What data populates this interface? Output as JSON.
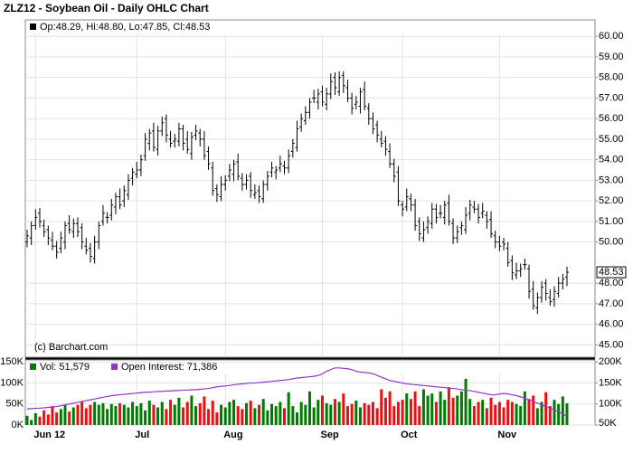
{
  "chart_data": {
    "type": "ohlc",
    "title": "ZLZ12 - Soybean Oil - Daily OHLC Chart",
    "legend_text": "Op:48.29, Hi:48.80, Lo:47.85, Cl:48.53",
    "watermark": "(c) Barchart.com",
    "bar_color": "#000000",
    "grid": true,
    "categories": [
      null,
      null,
      "Jun 12",
      null,
      null,
      null,
      null,
      null,
      null,
      null,
      null,
      null,
      null,
      null,
      null,
      null,
      null,
      null,
      null,
      null,
      null,
      null,
      null,
      null,
      null,
      null,
      "Jul",
      null,
      null,
      null,
      null,
      null,
      null,
      null,
      null,
      null,
      null,
      null,
      null,
      null,
      null,
      null,
      null,
      null,
      null,
      null,
      null,
      "Aug",
      null,
      null,
      null,
      null,
      null,
      null,
      null,
      null,
      null,
      null,
      null,
      null,
      null,
      null,
      null,
      null,
      null,
      null,
      null,
      null,
      null,
      null,
      "Sep",
      null,
      null,
      null,
      null,
      null,
      null,
      null,
      null,
      null,
      null,
      null,
      null,
      null,
      null,
      null,
      null,
      null,
      null,
      "Oct",
      null,
      null,
      null,
      null,
      null,
      null,
      null,
      null,
      null,
      null,
      null,
      null,
      null,
      null,
      null,
      null,
      null,
      null,
      null,
      null,
      null,
      null,
      "Nov",
      null,
      null,
      null,
      null,
      null,
      null,
      null,
      null,
      null,
      null,
      null,
      null,
      null,
      null,
      null,
      null
    ],
    "open": [
      50.0,
      50.2,
      50.8,
      51.4,
      50.8,
      50.6,
      50.1,
      49.8,
      49.7,
      50.0,
      50.9,
      50.5,
      50.9,
      50.7,
      49.8,
      49.7,
      49.2,
      50.0,
      51.0,
      51.2,
      51.3,
      51.7,
      52.2,
      52.0,
      52.3,
      53.1,
      53.3,
      53.5,
      54.2,
      54.8,
      55.4,
      54.5,
      55.4,
      56.0,
      55.0,
      54.9,
      54.9,
      55.5,
      55.0,
      54.3,
      55.2,
      55.3,
      55.0,
      54.4,
      53.6,
      52.6,
      52.2,
      52.8,
      53.2,
      53.3,
      53.9,
      53.1,
      52.8,
      53.2,
      52.3,
      52.5,
      52.1,
      52.8,
      53.4,
      53.4,
      53.6,
      53.7,
      53.6,
      54.4,
      54.6,
      55.6,
      55.9,
      56.3,
      57.0,
      56.8,
      57.3,
      56.7,
      57.2,
      58.0,
      57.3,
      58.1,
      57.5,
      57.0,
      56.7,
      56.6,
      57.4,
      56.5,
      56.0,
      55.7,
      55.0,
      54.9,
      54.4,
      53.8,
      53.4,
      51.8,
      51.7,
      52.1,
      51.8,
      51.0,
      50.2,
      50.7,
      50.9,
      51.6,
      51.4,
      51.2,
      51.9,
      50.9,
      50.2,
      50.7,
      50.6,
      51.4,
      51.7,
      51.6,
      51.4,
      51.3,
      51.1,
      50.3,
      50.0,
      50.0,
      49.7,
      49.1,
      48.4,
      48.6,
      48.9,
      48.7,
      47.7,
      46.8,
      47.3,
      48.0,
      47.3,
      47.2,
      47.5,
      48.0,
      48.29
    ],
    "high": [
      50.6,
      51.0,
      51.6,
      51.65,
      51.1,
      50.8,
      50.5,
      50.05,
      50.5,
      51.0,
      51.3,
      51.15,
      51.2,
      50.9,
      50.2,
      49.95,
      50.3,
      51.0,
      51.8,
      51.45,
      52.1,
      52.4,
      52.6,
      52.75,
      53.3,
      53.6,
      53.9,
      54.25,
      55.3,
      55.5,
      55.8,
      55.65,
      56.1,
      56.2,
      55.4,
      55.25,
      55.8,
      55.7,
      55.4,
      55.35,
      55.7,
      55.5,
      55.4,
      54.65,
      53.9,
      52.8,
      53.2,
      53.25,
      53.8,
      54.0,
      54.3,
      53.35,
      53.3,
      53.4,
      52.8,
      52.75,
      53.0,
      53.45,
      53.9,
      53.7,
      54.2,
      53.95,
      54.5,
      55.0,
      55.9,
      56.25,
      56.6,
      57.0,
      57.4,
      57.45,
      57.6,
      57.5,
      58.2,
      58.25,
      58.3,
      58.3,
      57.9,
      57.25,
      57.1,
      57.5,
      57.8,
      56.75,
      56.3,
      55.9,
      55.4,
      55.15,
      54.8,
      54.05,
      53.7,
      52.0,
      52.6,
      52.35,
      52.1,
      51.2,
      51.0,
      51.25,
      51.9,
      51.85,
      51.8,
      52.0,
      52.3,
      51.15,
      50.8,
      51.0,
      51.7,
      52.05,
      52.0,
      51.85,
      51.9,
      51.5,
      51.5,
      50.55,
      50.3,
      50.2,
      50.0,
      49.35,
      49.0,
      48.95,
      49.2,
      48.9,
      48.1,
      47.55,
      48.1,
      48.2,
      47.7,
      47.85,
      48.3,
      48.45,
      48.8
    ],
    "low": [
      49.75,
      49.85,
      50.6,
      50.7,
      50.25,
      49.85,
      49.6,
      49.2,
      49.45,
      49.65,
      50.4,
      50.2,
      50.25,
      49.65,
      49.4,
      49.0,
      48.95,
      49.65,
      50.8,
      50.9,
      51.05,
      51.35,
      51.6,
      51.7,
      52.05,
      52.75,
      53.1,
      53.2,
      53.95,
      54.45,
      54.4,
      54.2,
      55.15,
      54.85,
      54.6,
      54.6,
      54.65,
      54.45,
      54.3,
      54.0,
      54.95,
      54.65,
      54.0,
      53.5,
      52.25,
      51.95,
      52.0,
      52.5,
      52.95,
      52.95,
      53.0,
      52.5,
      52.55,
      52.15,
      52.1,
      51.9,
      51.9,
      52.5,
      53.15,
      53.05,
      53.4,
      53.3,
      53.35,
      54.1,
      54.4,
      55.35,
      55.7,
      56.0,
      56.75,
      56.45,
      56.6,
      56.4,
      56.95,
      57.15,
      57.1,
      57.25,
      56.8,
      56.2,
      56.45,
      56.25,
      56.4,
      55.7,
      55.25,
      54.85,
      54.6,
      54.2,
      53.6,
      52.9,
      51.75,
      51.25,
      51.5,
      51.5,
      50.55,
      50.05,
      50.0,
      50.4,
      50.65,
      50.9,
      51.15,
      50.85,
      50.8,
      49.9,
      49.95,
      50.35,
      50.4,
      51.05,
      51.4,
      50.9,
      51.15,
      50.65,
      50.2,
      49.7,
      49.55,
      49.6,
      48.8,
      48.15,
      48.2,
      48.3,
      48.65,
      47.25,
      46.7,
      46.5,
      47.05,
      47.15,
      46.9,
      46.85,
      47.3,
      47.7,
      47.85
    ],
    "close": [
      50.3,
      50.8,
      51.2,
      51.0,
      50.5,
      50.2,
      49.8,
      49.5,
      50.2,
      50.8,
      50.6,
      50.9,
      50.5,
      50.0,
      49.6,
      49.3,
      50.0,
      50.8,
      51.4,
      51.2,
      51.8,
      52.2,
      51.8,
      52.5,
      53.0,
      53.4,
      53.5,
      54.0,
      55.0,
      55.3,
      54.6,
      55.4,
      55.8,
      55.2,
      54.8,
      55.0,
      55.5,
      54.8,
      54.5,
      55.1,
      55.4,
      55.0,
      54.2,
      53.8,
      52.5,
      52.3,
      52.8,
      53.0,
      53.5,
      53.8,
      53.2,
      52.8,
      53.0,
      52.5,
      52.4,
      52.2,
      52.8,
      53.2,
      53.6,
      53.5,
      53.8,
      53.6,
      54.2,
      54.8,
      55.5,
      56.0,
      56.3,
      56.8,
      57.0,
      57.2,
      56.8,
      57.2,
      57.8,
      57.5,
      58.0,
      57.6,
      57.0,
      56.5,
      56.8,
      57.3,
      56.6,
      56.0,
      55.5,
      55.2,
      54.8,
      54.5,
      53.8,
      53.2,
      52.0,
      51.6,
      52.2,
      51.8,
      50.8,
      50.4,
      50.6,
      51.0,
      51.6,
      51.2,
      51.4,
      51.8,
      51.0,
      50.2,
      50.5,
      50.8,
      51.3,
      51.8,
      51.6,
      51.2,
      51.5,
      51.0,
      50.4,
      50.0,
      49.8,
      49.9,
      49.0,
      48.5,
      48.6,
      48.7,
      48.9,
      47.6,
      46.9,
      47.3,
      47.8,
      47.5,
      47.1,
      47.6,
      48.0,
      48.2,
      48.53
    ],
    "ylim": [
      44.4,
      60.8
    ],
    "yticks": [
      45,
      46,
      47,
      48,
      50,
      51,
      52,
      53,
      54,
      55,
      56,
      57,
      58,
      59,
      60
    ],
    "ytick_labels": [
      "45.00",
      "46.00",
      "47.00",
      "48.00",
      "50.00",
      "51.00",
      "52.00",
      "53.00",
      "54.00",
      "55.00",
      "56.00",
      "57.00",
      "58.00",
      "59.00",
      "60.00"
    ],
    "volume": {
      "name": "Vol: 51,579",
      "up_color": "#007a00",
      "down_color": "#e81010",
      "values": [
        22000,
        12000,
        28000,
        20000,
        35000,
        25000,
        45000,
        30000,
        38000,
        48000,
        32000,
        42000,
        48000,
        55000,
        40000,
        48000,
        55000,
        48000,
        52000,
        38000,
        50000,
        45000,
        52000,
        48000,
        42000,
        55000,
        45000,
        52000,
        35000,
        58000,
        48000,
        42000,
        55000,
        38000,
        60000,
        48000,
        65000,
        42000,
        55000,
        70000,
        45000,
        52000,
        68000,
        38000,
        58000,
        30000,
        48000,
        42000,
        55000,
        60000,
        45000,
        38000,
        52000,
        58000,
        40000,
        48000,
        62000,
        35000,
        50000,
        45000,
        55000,
        40000,
        78000,
        45000,
        30000,
        55000,
        48000,
        80000,
        42000,
        60000,
        70000,
        52000,
        48000,
        62000,
        55000,
        75000,
        45000,
        50000,
        58000,
        42000,
        52000,
        48000,
        55000,
        40000,
        85000,
        65000,
        80000,
        45000,
        55000,
        60000,
        75000,
        62000,
        80000,
        45000,
        85000,
        70000,
        75000,
        55000,
        80000,
        60000,
        90000,
        65000,
        70000,
        80000,
        110000,
        62000,
        45000,
        55000,
        60000,
        40000,
        65000,
        48000,
        55000,
        42000,
        60000,
        55000,
        50000,
        45000,
        80000,
        62000,
        70000,
        40000,
        55000,
        78000,
        45000,
        60000,
        50000,
        68000,
        51579
      ],
      "ylim": [
        0,
        155000
      ],
      "yticks": [
        {
          "value": 0,
          "label": "0K"
        },
        {
          "value": 50000,
          "label": "50K"
        },
        {
          "value": 100000,
          "label": "100K"
        },
        {
          "value": 150000,
          "label": "150K"
        }
      ]
    },
    "open_interest": {
      "name": "Open Interest: 71,386",
      "color": "#9933cc",
      "axis": "y2",
      "values": [
        88000,
        89000,
        90000,
        90000,
        91000,
        92000,
        93000,
        94000,
        96000,
        98000,
        100000,
        102000,
        104000,
        106000,
        108000,
        110000,
        112000,
        114000,
        116000,
        118000,
        120000,
        121000,
        122000,
        123000,
        124000,
        125000,
        126000,
        127000,
        128000,
        128000,
        129000,
        130000,
        130000,
        131000,
        131000,
        132000,
        132000,
        133000,
        133000,
        134000,
        134000,
        135000,
        136000,
        137000,
        139000,
        141000,
        142000,
        143000,
        144000,
        146000,
        147000,
        148000,
        149000,
        150000,
        150000,
        151000,
        152000,
        153000,
        154000,
        155000,
        156000,
        157000,
        158000,
        160000,
        162000,
        163000,
        164000,
        165000,
        166000,
        168000,
        172000,
        178000,
        182000,
        186000,
        186000,
        185000,
        184000,
        182000,
        178000,
        176000,
        175000,
        174000,
        172000,
        168000,
        164000,
        160000,
        156000,
        154000,
        152000,
        150000,
        148000,
        147000,
        146000,
        145000,
        144000,
        143000,
        142000,
        141000,
        140000,
        139000,
        138000,
        137000,
        136000,
        134000,
        133000,
        132000,
        130000,
        128000,
        126000,
        124000,
        122000,
        122000,
        124000,
        125000,
        124000,
        122000,
        120000,
        117000,
        114000,
        110000,
        106000,
        102000,
        98000,
        94000,
        90000,
        86000,
        82000,
        76000,
        71386
      ],
      "y2lim": [
        50000,
        205000
      ],
      "y2ticks": [
        {
          "value": 50000,
          "label": "50K"
        },
        {
          "value": 100000,
          "label": "100K"
        },
        {
          "value": 150000,
          "label": "150K"
        },
        {
          "value": 200000,
          "label": "200K"
        }
      ]
    }
  }
}
